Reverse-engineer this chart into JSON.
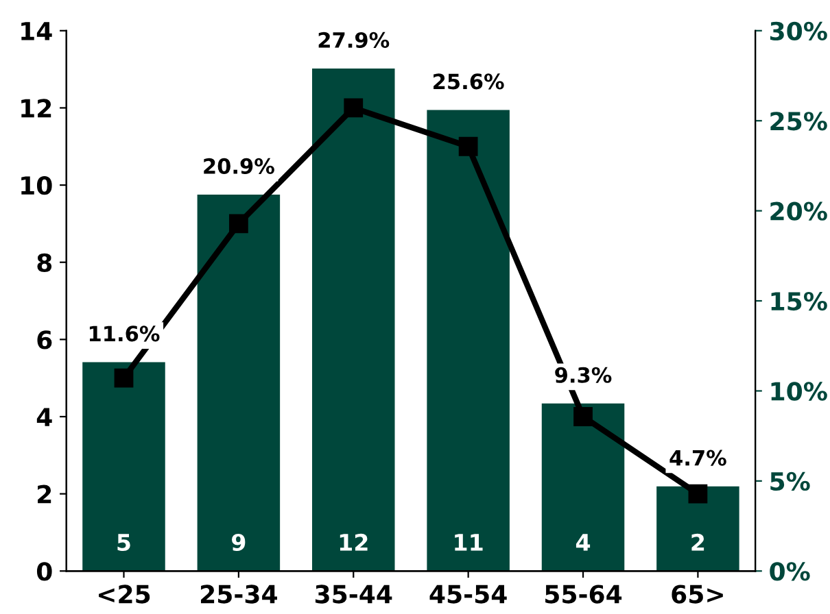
{
  "chart_data": {
    "type": "bar",
    "categories": [
      "<25",
      "25-34",
      "35-44",
      "45-54",
      "55-64",
      "65>"
    ],
    "series": [
      {
        "axis": "y2",
        "color": "#00473b",
        "values": [
          11.6,
          20.9,
          27.9,
          25.6,
          9.3,
          4.7
        ],
        "value_labels": [
          "11.6%",
          "20.9%",
          "27.9%",
          "25.6%",
          "9.3%",
          "4.7%"
        ]
      },
      {
        "type": "line",
        "axis": "y",
        "color": "#000000",
        "marker": "square",
        "line_style": "solid",
        "values": [
          5,
          9,
          12,
          11,
          4,
          2
        ]
      }
    ],
    "annotations": [
      "5",
      "9",
      "12",
      "11",
      "4",
      "2"
    ],
    "ylim": [
      0,
      14
    ],
    "yticks": [
      0,
      2,
      4,
      6,
      8,
      10,
      12,
      14
    ],
    "y2lim": [
      0,
      30
    ],
    "y2ticks": [
      {
        "value": 0,
        "label": "0%"
      },
      {
        "value": 5,
        "label": "5%"
      },
      {
        "value": 10,
        "label": "10%"
      },
      {
        "value": 15,
        "label": "15%"
      },
      {
        "value": 20,
        "label": "20%"
      },
      {
        "value": 25,
        "label": "25%"
      },
      {
        "value": 30,
        "label": "30%"
      }
    ],
    "grid": false,
    "legend": false
  }
}
